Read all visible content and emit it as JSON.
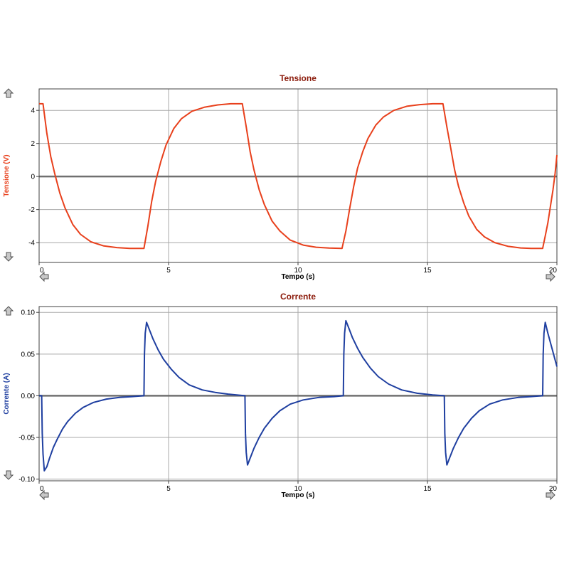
{
  "colors": {
    "voltage": "#e8401c",
    "current": "#1f3fa0",
    "title": "#8b1a0a",
    "grid": "#a8a8a8",
    "zero_line": "#707070",
    "frame": "#404040",
    "arrow_fill": "#c8c8c8",
    "arrow_stroke": "#505050"
  },
  "icons": {
    "up": "arrow-up-icon",
    "down": "arrow-down-icon",
    "left": "arrow-left-icon",
    "right": "arrow-right-icon"
  },
  "chart_data": [
    {
      "type": "line",
      "title": "Tensione",
      "xlabel": "Tempo (s)",
      "ylabel": "Tensione (V)",
      "xlim": [
        0,
        20
      ],
      "ylim": [
        -5.2,
        5.3
      ],
      "xticks": [
        0,
        5,
        10,
        15,
        20
      ],
      "yticks": [
        -4,
        -2,
        0,
        2,
        4
      ],
      "ytick_labels": [
        "-4",
        "-2",
        "0",
        "2",
        "4"
      ],
      "grid": true,
      "series": [
        {
          "color": "#e8401c",
          "x": [
            0,
            0.15,
            0.3,
            0.45,
            0.6,
            0.8,
            1.0,
            1.3,
            1.6,
            2.0,
            2.5,
            3.0,
            3.5,
            4.05,
            4.2,
            4.35,
            4.5,
            4.7,
            4.9,
            5.2,
            5.5,
            5.9,
            6.4,
            6.9,
            7.4,
            7.85,
            8.0,
            8.15,
            8.3,
            8.5,
            8.7,
            9.0,
            9.3,
            9.7,
            10.2,
            10.7,
            11.2,
            11.7,
            11.85,
            12.0,
            12.15,
            12.3,
            12.5,
            12.7,
            13.0,
            13.3,
            13.7,
            14.2,
            14.7,
            15.2,
            15.6,
            15.75,
            15.9,
            16.05,
            16.2,
            16.4,
            16.6,
            16.9,
            17.2,
            17.6,
            18.1,
            18.6,
            19.0,
            19.45,
            19.55,
            19.65,
            19.75,
            19.85,
            19.93,
            20.0
          ],
          "y": [
            4.4,
            4.4,
            2.6,
            1.2,
            0.2,
            -1.0,
            -1.9,
            -2.9,
            -3.5,
            -3.95,
            -4.2,
            -4.3,
            -4.35,
            -4.35,
            -3.0,
            -1.5,
            -0.3,
            0.9,
            1.9,
            2.9,
            3.5,
            3.95,
            4.2,
            4.33,
            4.4,
            4.4,
            3.0,
            1.5,
            0.4,
            -0.8,
            -1.7,
            -2.7,
            -3.3,
            -3.85,
            -4.15,
            -4.28,
            -4.33,
            -4.35,
            -3.3,
            -1.9,
            -0.6,
            0.5,
            1.5,
            2.3,
            3.1,
            3.6,
            4.0,
            4.25,
            4.35,
            4.4,
            4.4,
            3.0,
            1.7,
            0.4,
            -0.6,
            -1.6,
            -2.4,
            -3.2,
            -3.65,
            -4.0,
            -4.22,
            -4.32,
            -4.35,
            -4.35,
            -3.6,
            -2.8,
            -1.8,
            -0.8,
            0.2,
            1.3
          ]
        }
      ]
    },
    {
      "type": "line",
      "title": "Corrente",
      "xlabel": "Tempo (s)",
      "ylabel": "Corrente (A)",
      "xlim": [
        0,
        20
      ],
      "ylim": [
        -0.102,
        0.107
      ],
      "xticks": [
        0,
        5,
        10,
        15,
        20
      ],
      "yticks": [
        -0.1,
        -0.05,
        0,
        0.05,
        0.1
      ],
      "ytick_labels": [
        "-0.10",
        "-0.05",
        "0.00",
        "0.05",
        "0.10"
      ],
      "grid": true,
      "series": [
        {
          "color": "#1f3fa0",
          "x": [
            0,
            0.1,
            0.12,
            0.15,
            0.2,
            0.3,
            0.4,
            0.55,
            0.7,
            0.9,
            1.1,
            1.4,
            1.7,
            2.1,
            2.6,
            3.1,
            3.6,
            4.05,
            4.07,
            4.1,
            4.15,
            4.25,
            4.4,
            4.6,
            4.8,
            5.1,
            5.4,
            5.8,
            6.3,
            6.8,
            7.3,
            7.95,
            7.97,
            8.0,
            8.05,
            8.15,
            8.3,
            8.5,
            8.7,
            9.0,
            9.3,
            9.7,
            10.2,
            10.8,
            11.4,
            11.75,
            11.77,
            11.8,
            11.85,
            11.95,
            12.1,
            12.3,
            12.5,
            12.8,
            13.1,
            13.5,
            14.0,
            14.6,
            15.2,
            15.65,
            15.67,
            15.7,
            15.75,
            15.85,
            16.0,
            16.2,
            16.4,
            16.7,
            17.0,
            17.4,
            17.9,
            18.5,
            19.0,
            19.45,
            19.47,
            19.5,
            19.55,
            19.65,
            19.8,
            20.0
          ],
          "y": [
            0,
            0,
            -0.045,
            -0.07,
            -0.09,
            -0.085,
            -0.075,
            -0.062,
            -0.052,
            -0.04,
            -0.031,
            -0.021,
            -0.014,
            -0.008,
            -0.004,
            -0.002,
            -0.001,
            0,
            0.05,
            0.075,
            0.088,
            0.08,
            0.068,
            0.055,
            0.044,
            0.032,
            0.022,
            0.013,
            0.007,
            0.004,
            0.002,
            0,
            -0.045,
            -0.068,
            -0.083,
            -0.075,
            -0.063,
            -0.05,
            -0.039,
            -0.027,
            -0.018,
            -0.01,
            -0.005,
            -0.002,
            -0.001,
            0,
            0.05,
            0.075,
            0.09,
            0.082,
            0.07,
            0.057,
            0.046,
            0.033,
            0.023,
            0.014,
            0.007,
            0.003,
            0.001,
            0,
            -0.045,
            -0.068,
            -0.083,
            -0.075,
            -0.063,
            -0.05,
            -0.039,
            -0.027,
            -0.018,
            -0.01,
            -0.005,
            -0.002,
            -0.001,
            0,
            0.05,
            0.075,
            0.088,
            0.075,
            0.058,
            0.035
          ]
        }
      ]
    }
  ]
}
